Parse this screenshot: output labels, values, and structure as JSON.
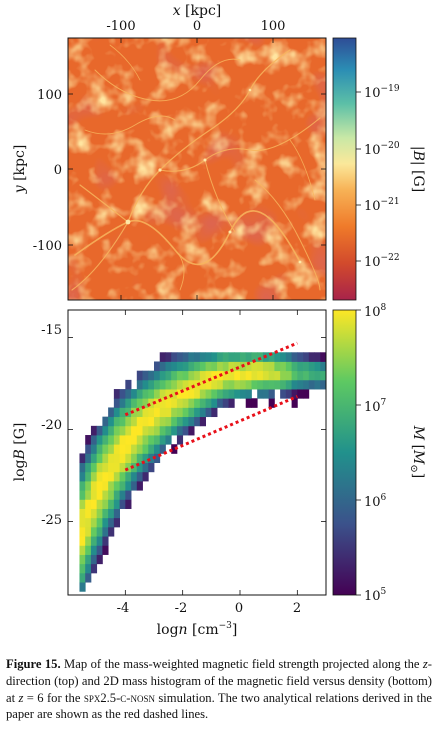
{
  "top_panel": {
    "x_axis_label": "x [kpc]",
    "x_ticks": [
      "-100",
      "0",
      "100"
    ],
    "y_axis_label": "y [kpc]",
    "y_ticks": [
      "100",
      "0",
      "-100"
    ],
    "colorbar_label": "|B| [G]",
    "colorbar_ticks": [
      "10^-19",
      "10^-20",
      "10^-21",
      "10^-22"
    ],
    "colormap": [
      "#a8234a",
      "#d24a2c",
      "#ef7a2a",
      "#f7b256",
      "#fbe89a",
      "#c8e8a6",
      "#5cbfa7",
      "#2b8db4",
      "#2f4d96"
    ]
  },
  "chart_data": {
    "type": "heatmap",
    "title": "",
    "xlabel": "log n [cm^-3]",
    "ylabel": "log B [G]",
    "xlim": [
      -6,
      3
    ],
    "ylim": [
      -29,
      -13.5
    ],
    "x_ticks": [
      "-4",
      "-2",
      "0",
      "2"
    ],
    "y_ticks": [
      "-15",
      "-20",
      "-25"
    ],
    "colorbar_label": "M [M☉]",
    "colorbar_ticks": [
      "10^8",
      "10^7",
      "10^6",
      "10^5"
    ],
    "colorbar_range": [
      5,
      8
    ],
    "colormap": [
      "#440154",
      "#3b528b",
      "#21918c",
      "#5ec962",
      "#fde725"
    ],
    "relations": [
      {
        "style": "red dashed",
        "x": [
          -4.0,
          2.0
        ],
        "y": [
          -19.2,
          -15.3
        ]
      },
      {
        "style": "red dashed",
        "x": [
          -4.0,
          2.0
        ],
        "y": [
          -22.2,
          -18.2
        ]
      }
    ]
  },
  "caption": {
    "label": "Figure 15.",
    "part1": " Map of the mass-weighted magnetic field strength projected along the ",
    "z1": "z",
    "part2": "-direction (top) and 2D mass histogram of the magnetic field versus density (bottom) at ",
    "z2": "z",
    "part3": " = 6 for the ",
    "sim": "spx2.5-c-nosn",
    "part4": " simulation. The two analytical relations derived in the paper are shown as the red dashed lines."
  }
}
